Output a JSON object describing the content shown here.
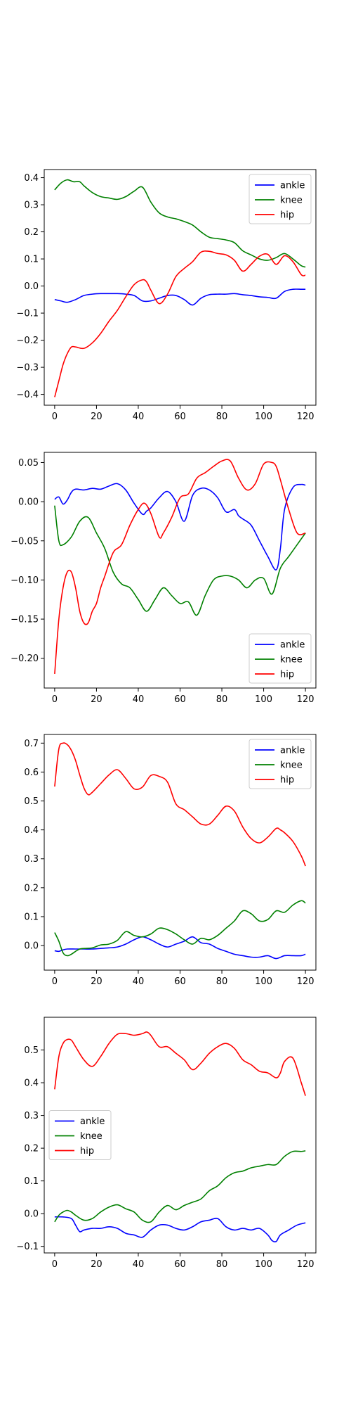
{
  "chart_data": [
    {
      "type": "line",
      "xlim": [
        -5,
        125
      ],
      "ylim": [
        -0.44,
        0.43
      ],
      "xticks": [
        0,
        20,
        40,
        60,
        80,
        100,
        120
      ],
      "xtick_labels": [
        "0",
        "20",
        "40",
        "60",
        "80",
        "100",
        "120"
      ],
      "yticks": [
        -0.4,
        -0.3,
        -0.2,
        -0.1,
        0.0,
        0.1,
        0.2,
        0.3,
        0.4
      ],
      "ytick_labels": [
        "−0.4",
        "−0.3",
        "−0.2",
        "−0.1",
        "0.0",
        "0.1",
        "0.2",
        "0.3",
        "0.4"
      ],
      "legend_position": "upper right",
      "series": [
        {
          "name": "ankle",
          "color": "#0000ff",
          "x": [
            0,
            3,
            6,
            10,
            14,
            18,
            22,
            26,
            30,
            34,
            38,
            42,
            46,
            50,
            54,
            58,
            62,
            66,
            70,
            74,
            78,
            82,
            86,
            90,
            94,
            98,
            102,
            106,
            110,
            114,
            118,
            120
          ],
          "y": [
            -0.05,
            -0.055,
            -0.06,
            -0.05,
            -0.035,
            -0.03,
            -0.028,
            -0.028,
            -0.028,
            -0.03,
            -0.035,
            -0.055,
            -0.055,
            -0.045,
            -0.035,
            -0.035,
            -0.05,
            -0.07,
            -0.045,
            -0.032,
            -0.03,
            -0.03,
            -0.028,
            -0.032,
            -0.035,
            -0.04,
            -0.042,
            -0.045,
            -0.02,
            -0.012,
            -0.012,
            -0.012
          ]
        },
        {
          "name": "knee",
          "color": "#008000",
          "x": [
            0,
            3,
            6,
            9,
            12,
            14,
            18,
            22,
            26,
            30,
            34,
            38,
            42,
            46,
            50,
            54,
            58,
            62,
            66,
            70,
            74,
            78,
            82,
            86,
            90,
            94,
            98,
            102,
            106,
            110,
            114,
            118,
            120
          ],
          "y": [
            0.355,
            0.38,
            0.392,
            0.385,
            0.385,
            0.37,
            0.345,
            0.33,
            0.325,
            0.32,
            0.33,
            0.35,
            0.365,
            0.31,
            0.27,
            0.255,
            0.248,
            0.238,
            0.225,
            0.2,
            0.18,
            0.175,
            0.17,
            0.16,
            0.13,
            0.115,
            0.1,
            0.095,
            0.105,
            0.12,
            0.1,
            0.075,
            0.07
          ]
        },
        {
          "name": "hip",
          "color": "#ff0000",
          "x": [
            0,
            2,
            4,
            6,
            8,
            10,
            14,
            18,
            22,
            26,
            30,
            34,
            38,
            42,
            44,
            46,
            50,
            54,
            58,
            62,
            66,
            70,
            74,
            78,
            82,
            86,
            90,
            94,
            98,
            102,
            106,
            110,
            114,
            118,
            120
          ],
          "y": [
            -0.41,
            -0.35,
            -0.29,
            -0.25,
            -0.225,
            -0.225,
            -0.23,
            -0.21,
            -0.175,
            -0.13,
            -0.09,
            -0.04,
            0.005,
            0.023,
            0.015,
            -0.015,
            -0.065,
            -0.03,
            0.035,
            0.065,
            0.09,
            0.125,
            0.128,
            0.12,
            0.115,
            0.095,
            0.055,
            0.08,
            0.11,
            0.117,
            0.08,
            0.112,
            0.09,
            0.042,
            0.04
          ]
        }
      ]
    },
    {
      "type": "line",
      "xlim": [
        -5,
        125
      ],
      "ylim": [
        -0.238,
        0.063
      ],
      "xticks": [
        0,
        20,
        40,
        60,
        80,
        100,
        120
      ],
      "xtick_labels": [
        "0",
        "20",
        "40",
        "60",
        "80",
        "100",
        "120"
      ],
      "yticks": [
        -0.2,
        -0.15,
        -0.1,
        -0.05,
        0.0,
        0.05
      ],
      "ytick_labels": [
        "−0.20",
        "−0.15",
        "−0.10",
        "−0.05",
        "0.00",
        "0.05"
      ],
      "legend_position": "lower right",
      "series": [
        {
          "name": "ankle",
          "color": "#0000ff",
          "x": [
            0,
            2,
            4,
            6,
            8,
            10,
            14,
            18,
            22,
            26,
            30,
            34,
            38,
            42,
            44,
            46,
            50,
            54,
            58,
            62,
            66,
            70,
            74,
            78,
            82,
            86,
            88,
            90,
            94,
            98,
            102,
            106,
            108,
            110,
            114,
            118,
            120
          ],
          "y": [
            0.003,
            0.006,
            -0.003,
            0.002,
            0.012,
            0.016,
            0.015,
            0.017,
            0.016,
            0.02,
            0.023,
            0.015,
            -0.002,
            -0.016,
            -0.012,
            -0.008,
            0.005,
            0.013,
            0.0,
            -0.025,
            0.008,
            0.017,
            0.015,
            0.005,
            -0.013,
            -0.01,
            -0.018,
            -0.022,
            -0.03,
            -0.05,
            -0.07,
            -0.087,
            -0.06,
            -0.01,
            0.018,
            0.022,
            0.021
          ]
        },
        {
          "name": "knee",
          "color": "#008000",
          "x": [
            0,
            2,
            4,
            8,
            12,
            16,
            20,
            24,
            28,
            32,
            36,
            40,
            44,
            48,
            52,
            56,
            60,
            64,
            68,
            72,
            76,
            80,
            84,
            88,
            92,
            96,
            100,
            104,
            108,
            112,
            116,
            120
          ],
          "y": [
            -0.005,
            -0.05,
            -0.055,
            -0.045,
            -0.025,
            -0.02,
            -0.04,
            -0.06,
            -0.09,
            -0.105,
            -0.11,
            -0.125,
            -0.14,
            -0.125,
            -0.11,
            -0.12,
            -0.13,
            -0.128,
            -0.145,
            -0.12,
            -0.1,
            -0.095,
            -0.095,
            -0.1,
            -0.11,
            -0.1,
            -0.098,
            -0.118,
            -0.085,
            -0.07,
            -0.055,
            -0.04
          ]
        },
        {
          "name": "hip",
          "color": "#ff0000",
          "x": [
            0,
            2,
            4,
            6,
            8,
            10,
            12,
            14,
            16,
            18,
            20,
            22,
            24,
            28,
            32,
            36,
            40,
            43,
            46,
            50,
            52,
            56,
            60,
            64,
            68,
            72,
            76,
            80,
            84,
            88,
            92,
            96,
            100,
            104,
            106,
            108,
            112,
            116,
            120
          ],
          "y": [
            -0.22,
            -0.15,
            -0.11,
            -0.09,
            -0.09,
            -0.11,
            -0.14,
            -0.155,
            -0.155,
            -0.14,
            -0.13,
            -0.11,
            -0.095,
            -0.065,
            -0.055,
            -0.03,
            -0.01,
            -0.002,
            -0.015,
            -0.045,
            -0.04,
            -0.02,
            0.005,
            0.01,
            0.03,
            0.037,
            0.045,
            0.052,
            0.052,
            0.03,
            0.015,
            0.023,
            0.048,
            0.05,
            0.045,
            0.028,
            -0.01,
            -0.04,
            -0.04
          ]
        }
      ]
    },
    {
      "type": "line",
      "xlim": [
        -5,
        125
      ],
      "ylim": [
        -0.085,
        0.73
      ],
      "xticks": [
        0,
        20,
        40,
        60,
        80,
        100,
        120
      ],
      "xtick_labels": [
        "0",
        "20",
        "40",
        "60",
        "80",
        "100",
        "120"
      ],
      "yticks": [
        0.0,
        0.1,
        0.2,
        0.3,
        0.4,
        0.5,
        0.6,
        0.7
      ],
      "ytick_labels": [
        "0.0",
        "0.1",
        "0.2",
        "0.3",
        "0.4",
        "0.5",
        "0.6",
        "0.7"
      ],
      "legend_position": "upper right",
      "series": [
        {
          "name": "ankle",
          "color": "#0000ff",
          "x": [
            0,
            2,
            4,
            6,
            10,
            14,
            18,
            22,
            26,
            30,
            34,
            38,
            42,
            46,
            50,
            54,
            58,
            62,
            66,
            70,
            74,
            78,
            82,
            86,
            90,
            94,
            98,
            102,
            106,
            110,
            114,
            118,
            120
          ],
          "y": [
            -0.018,
            -0.02,
            -0.015,
            -0.012,
            -0.012,
            -0.012,
            -0.012,
            -0.01,
            -0.008,
            -0.005,
            0.005,
            0.02,
            0.03,
            0.02,
            0.005,
            -0.005,
            0.005,
            0.015,
            0.03,
            0.01,
            0.005,
            -0.01,
            -0.02,
            -0.03,
            -0.035,
            -0.04,
            -0.04,
            -0.035,
            -0.045,
            -0.035,
            -0.035,
            -0.035,
            -0.03
          ]
        },
        {
          "name": "knee",
          "color": "#008000",
          "x": [
            0,
            2,
            4,
            6,
            8,
            10,
            12,
            14,
            18,
            22,
            26,
            30,
            34,
            38,
            42,
            46,
            50,
            54,
            58,
            62,
            66,
            70,
            74,
            78,
            82,
            86,
            90,
            94,
            98,
            102,
            106,
            110,
            114,
            118,
            120
          ],
          "y": [
            0.045,
            0.015,
            -0.025,
            -0.035,
            -0.03,
            -0.02,
            -0.012,
            -0.01,
            -0.008,
            0.002,
            0.005,
            0.018,
            0.048,
            0.035,
            0.03,
            0.04,
            0.06,
            0.055,
            0.04,
            0.02,
            0.005,
            0.025,
            0.02,
            0.035,
            0.06,
            0.085,
            0.12,
            0.11,
            0.085,
            0.09,
            0.12,
            0.115,
            0.14,
            0.155,
            0.147
          ]
        },
        {
          "name": "hip",
          "color": "#ff0000",
          "x": [
            0,
            2,
            4,
            6,
            8,
            10,
            12,
            14,
            16,
            18,
            22,
            26,
            30,
            34,
            38,
            42,
            46,
            50,
            54,
            58,
            62,
            66,
            70,
            74,
            78,
            82,
            86,
            90,
            94,
            98,
            102,
            106,
            108,
            110,
            114,
            118,
            120
          ],
          "y": [
            0.55,
            0.68,
            0.7,
            0.695,
            0.675,
            0.64,
            0.59,
            0.545,
            0.522,
            0.53,
            0.56,
            0.59,
            0.608,
            0.578,
            0.542,
            0.548,
            0.588,
            0.585,
            0.565,
            0.49,
            0.47,
            0.445,
            0.42,
            0.42,
            0.45,
            0.482,
            0.465,
            0.41,
            0.37,
            0.355,
            0.375,
            0.405,
            0.4,
            0.39,
            0.36,
            0.31,
            0.275
          ]
        }
      ]
    },
    {
      "type": "line",
      "xlim": [
        -5,
        125
      ],
      "ylim": [
        -0.12,
        0.6
      ],
      "xticks": [
        0,
        20,
        40,
        60,
        80,
        100,
        120
      ],
      "xtick_labels": [
        "0",
        "20",
        "40",
        "60",
        "80",
        "100",
        "120"
      ],
      "yticks": [
        -0.1,
        0.0,
        0.1,
        0.2,
        0.3,
        0.4,
        0.5
      ],
      "ytick_labels": [
        "−0.1",
        "0.0",
        "0.1",
        "0.2",
        "0.3",
        "0.4",
        "0.5"
      ],
      "legend_position": "center left",
      "series": [
        {
          "name": "ankle",
          "color": "#0000ff",
          "x": [
            0,
            4,
            8,
            10,
            12,
            14,
            18,
            22,
            26,
            30,
            34,
            38,
            42,
            46,
            50,
            54,
            58,
            62,
            66,
            70,
            74,
            78,
            82,
            86,
            90,
            94,
            98,
            102,
            104,
            106,
            108,
            112,
            116,
            120
          ],
          "y": [
            -0.01,
            -0.01,
            -0.015,
            -0.035,
            -0.055,
            -0.05,
            -0.045,
            -0.045,
            -0.04,
            -0.045,
            -0.06,
            -0.065,
            -0.072,
            -0.05,
            -0.035,
            -0.035,
            -0.045,
            -0.05,
            -0.04,
            -0.025,
            -0.02,
            -0.015,
            -0.04,
            -0.05,
            -0.045,
            -0.05,
            -0.045,
            -0.065,
            -0.082,
            -0.085,
            -0.065,
            -0.05,
            -0.035,
            -0.028
          ]
        },
        {
          "name": "knee",
          "color": "#008000",
          "x": [
            0,
            2,
            4,
            6,
            8,
            10,
            14,
            18,
            22,
            26,
            30,
            34,
            38,
            42,
            46,
            50,
            54,
            58,
            62,
            66,
            70,
            74,
            78,
            82,
            86,
            90,
            94,
            98,
            102,
            106,
            110,
            114,
            118,
            120
          ],
          "y": [
            -0.025,
            -0.005,
            0.005,
            0.01,
            0.005,
            -0.005,
            -0.02,
            -0.015,
            0.005,
            0.02,
            0.027,
            0.015,
            0.005,
            -0.02,
            -0.025,
            0.005,
            0.025,
            0.012,
            0.025,
            0.035,
            0.045,
            0.07,
            0.085,
            0.11,
            0.125,
            0.13,
            0.14,
            0.145,
            0.15,
            0.15,
            0.175,
            0.19,
            0.19,
            0.192
          ]
        },
        {
          "name": "hip",
          "color": "#ff0000",
          "x": [
            0,
            2,
            4,
            6,
            8,
            10,
            14,
            18,
            22,
            26,
            30,
            34,
            38,
            42,
            44,
            46,
            50,
            54,
            58,
            62,
            66,
            70,
            74,
            78,
            82,
            86,
            90,
            94,
            98,
            102,
            106,
            108,
            110,
            114,
            118,
            120
          ],
          "y": [
            0.38,
            0.48,
            0.52,
            0.532,
            0.53,
            0.51,
            0.47,
            0.45,
            0.48,
            0.52,
            0.548,
            0.55,
            0.545,
            0.55,
            0.555,
            0.545,
            0.51,
            0.51,
            0.49,
            0.47,
            0.44,
            0.46,
            0.49,
            0.51,
            0.52,
            0.505,
            0.47,
            0.455,
            0.435,
            0.43,
            0.415,
            0.43,
            0.465,
            0.475,
            0.4,
            0.36
          ]
        }
      ]
    }
  ]
}
